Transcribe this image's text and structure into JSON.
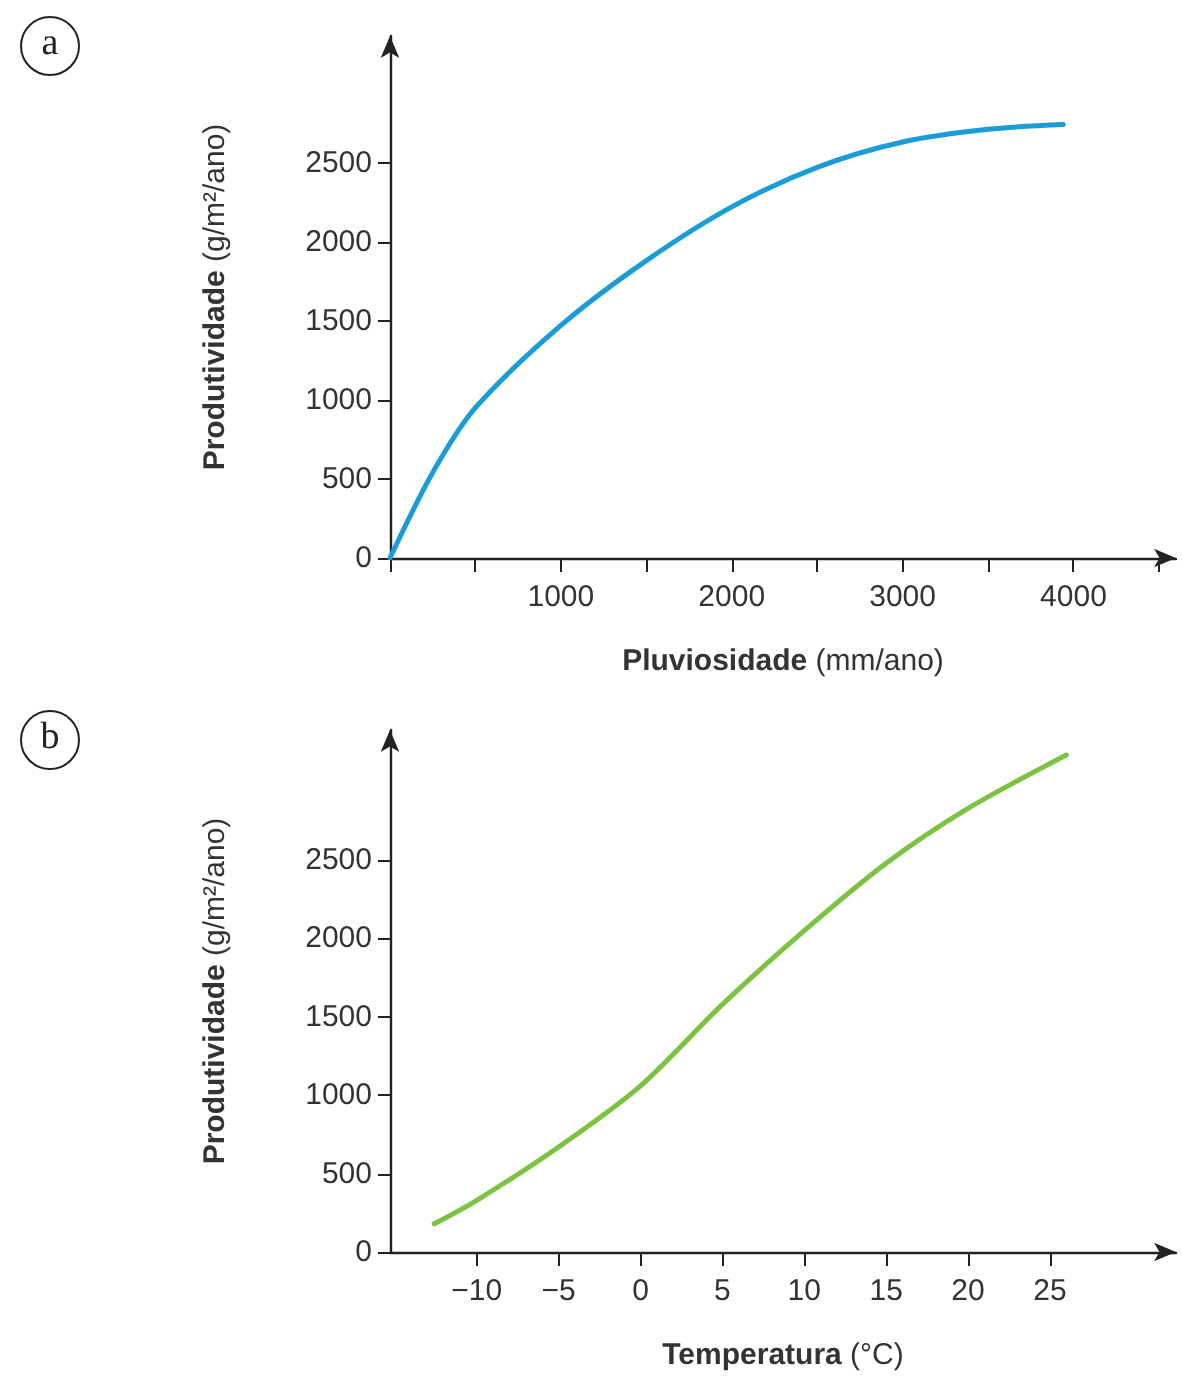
{
  "chart_data": [
    {
      "type": "line",
      "annotations": [
        "a"
      ],
      "xlabel": "Pluviosidade (mm/ano)",
      "ylabel": "Produtividade (g/m²/ano)",
      "x": [
        0,
        250,
        500,
        1000,
        1500,
        2000,
        2500,
        3000,
        3500,
        3940
      ],
      "series": [
        {
          "color": "#1a9cd8",
          "values": [
            0,
            540,
            950,
            1470,
            1880,
            2220,
            2470,
            2630,
            2710,
            2740
          ]
        }
      ],
      "xlim": [
        0,
        4600
      ],
      "ylim": [
        0,
        3300
      ],
      "xticks": [
        {
          "value": 0,
          "label": null
        },
        {
          "value": 500,
          "label": null
        },
        1000,
        {
          "value": 1500,
          "label": null
        },
        2000,
        {
          "value": 2500,
          "label": null
        },
        3000,
        {
          "value": 3500,
          "label": null
        },
        4000,
        {
          "value": 4500,
          "label": null
        }
      ],
      "yticks": [
        0,
        500,
        1000,
        1500,
        2000,
        2500
      ],
      "marker": "none",
      "line_style": "solid"
    },
    {
      "type": "line",
      "annotations": [
        "b"
      ],
      "xlabel": "Temperatura (°C)",
      "ylabel": "Produtividade (g/m²/ano)",
      "x": [
        -12.6,
        -10,
        -5,
        0,
        5,
        10,
        15,
        20,
        26
      ],
      "series": [
        {
          "color": "#7dc242",
          "values": [
            180,
            330,
            670,
            1060,
            1580,
            2050,
            2480,
            2830,
            3170
          ]
        }
      ],
      "xlim": [
        -15.3,
        32.7
      ],
      "ylim": [
        0,
        3330
      ],
      "xticks": [
        -10,
        -5,
        0,
        5,
        10,
        15,
        20,
        25
      ],
      "yticks": [
        0,
        500,
        1000,
        1500,
        2000,
        2500
      ],
      "marker": "none",
      "line_style": "solid"
    }
  ]
}
